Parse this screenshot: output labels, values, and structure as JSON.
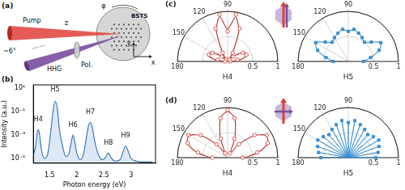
{
  "diagram": {
    "label": "(a)",
    "pump": "Pump",
    "hhg": "HHG",
    "polarizer": "Pol.",
    "sample": "BSTS",
    "angle": "~6°",
    "axes": [
      "x",
      "y",
      "z"
    ],
    "azimuth": "φ"
  },
  "chart_data": [
    {
      "type": "line",
      "panel": "(b)",
      "x_label": "Photon energy (eV)",
      "y_label": "Intensity (a.u.)",
      "x": [
        1.2,
        1.24,
        1.27,
        1.29,
        1.31,
        1.34,
        1.4,
        1.46,
        1.52,
        1.56,
        1.6,
        1.64,
        1.68,
        1.74,
        1.8,
        1.86,
        1.9,
        1.93,
        1.96,
        2.0,
        2.06,
        2.12,
        2.18,
        2.22,
        2.25,
        2.28,
        2.33,
        2.4,
        2.48,
        2.54,
        2.58,
        2.62,
        2.7,
        2.8,
        2.86,
        2.9,
        2.94,
        3.0,
        3.1,
        3.2,
        3.3,
        3.4
      ],
      "values": [
        2e-05,
        0.0001,
        0.0015,
        0.003,
        0.0015,
        0.0001,
        1e-05,
        2e-05,
        0.002,
        0.1,
        0.8,
        0.2,
        0.003,
        0.0001,
        1.5e-05,
        3e-05,
        0.0003,
        0.001,
        0.0003,
        3e-05,
        8e-06,
        2e-05,
        0.0008,
        0.008,
        0.012,
        0.006,
        0.0003,
        2e-05,
        8e-06,
        1.5e-05,
        3e-05,
        1.5e-05,
        6e-06,
        8e-06,
        5e-05,
        0.00012,
        5e-05,
        1e-05,
        6e-06,
        5e-06,
        5e-06,
        5e-06
      ],
      "color": "#2f6fb5",
      "log": "y",
      "grid": false,
      "xlim": [
        1.2,
        3.45
      ],
      "xticks": [
        1.5,
        2,
        2.5,
        3
      ],
      "ylim": [
        4e-06,
        20
      ],
      "yticks": [
        {
          "value": 1e-05,
          "label": "10⁻⁵"
        },
        {
          "value": 0.001,
          "label": "10⁻³"
        },
        {
          "value": 0.1,
          "label": "10⁻¹"
        },
        {
          "value": 10,
          "label": "10¹"
        }
      ],
      "annotations": [
        {
          "text": "H4",
          "x": 1.29,
          "y": 0.012
        },
        {
          "text": "H5",
          "x": 1.6,
          "y": 4
        },
        {
          "text": "H6",
          "x": 1.93,
          "y": 0.004
        },
        {
          "text": "H7",
          "x": 2.25,
          "y": 0.05
        },
        {
          "text": "H8",
          "x": 2.58,
          "y": 0.00012
        },
        {
          "text": "H9",
          "x": 2.9,
          "y": 0.0005
        }
      ]
    },
    {
      "type": "polar",
      "panel": "(c)",
      "title": "H4",
      "theta": [
        0,
        10,
        20,
        30,
        40,
        50,
        60,
        70,
        80,
        90,
        100,
        110,
        120,
        130,
        140,
        150,
        160,
        170,
        180
      ],
      "rlim": [
        0,
        1
      ],
      "rticks": [
        0.5,
        1
      ],
      "thetaticks": [
        90,
        120,
        150,
        180
      ],
      "series": [
        {
          "color": "#d9534f",
          "marker": "circle",
          "line_style": "none",
          "values": [
            0.05,
            0.2,
            0.4,
            0.35,
            0.15,
            0.05,
            0.2,
            0.7,
            0.95,
            0.6,
            0.95,
            0.7,
            0.2,
            0.05,
            0.15,
            0.35,
            0.4,
            0.2,
            0.05
          ]
        },
        {
          "color": "#b0302a",
          "marker": "none",
          "line_style": "solid",
          "values": [
            0.1,
            0.3,
            0.42,
            0.35,
            0.18,
            0.05,
            0.2,
            0.65,
            0.9,
            0.65,
            0.9,
            0.65,
            0.2,
            0.05,
            0.18,
            0.35,
            0.42,
            0.3,
            0.1
          ]
        }
      ]
    },
    {
      "type": "polar",
      "title": "H5",
      "theta": [
        0,
        10,
        20,
        30,
        40,
        50,
        60,
        70,
        80,
        90,
        100,
        110,
        120,
        130,
        140,
        150,
        160,
        170,
        180
      ],
      "rlim": [
        0,
        1
      ],
      "rticks": [
        0.5,
        1
      ],
      "thetaticks": [
        90,
        120,
        150,
        180
      ],
      "series": [
        {
          "color": "#3b8fd1",
          "marker": "square",
          "line_style": "solid",
          "values": [
            0.3,
            0.45,
            0.65,
            0.75,
            0.6,
            0.5,
            0.55,
            0.6,
            0.65,
            0.6,
            0.65,
            0.6,
            0.55,
            0.5,
            0.6,
            0.75,
            0.65,
            0.45,
            0.3
          ]
        }
      ]
    },
    {
      "type": "polar",
      "panel": "(d)",
      "title": "H4",
      "theta": [
        0,
        10,
        20,
        30,
        40,
        50,
        60,
        70,
        80,
        90,
        100,
        110,
        120,
        130,
        140,
        150,
        160,
        170,
        180
      ],
      "rlim": [
        0,
        1
      ],
      "rticks": [
        0.5,
        1
      ],
      "thetaticks": [
        90,
        120,
        150,
        180
      ],
      "series": [
        {
          "color": "#d9534f",
          "marker": "circle",
          "line_style": "none",
          "values": [
            0.3,
            0.6,
            0.85,
            0.9,
            0.7,
            0.35,
            0.1,
            0.4,
            0.8,
            0.95,
            0.8,
            0.4,
            0.1,
            0.35,
            0.7,
            0.9,
            0.85,
            0.6,
            0.3
          ]
        },
        {
          "color": "#b0302a",
          "marker": "none",
          "line_style": "solid",
          "values": [
            0.35,
            0.62,
            0.85,
            0.88,
            0.68,
            0.35,
            0.12,
            0.42,
            0.8,
            0.92,
            0.8,
            0.42,
            0.12,
            0.35,
            0.68,
            0.88,
            0.85,
            0.62,
            0.35
          ]
        }
      ]
    },
    {
      "type": "polar",
      "title": "H5",
      "theta": [
        0,
        10,
        20,
        30,
        40,
        50,
        60,
        70,
        80,
        90,
        100,
        110,
        120,
        130,
        140,
        150,
        160,
        170,
        180
      ],
      "rlim": [
        0,
        1
      ],
      "rticks": [
        0.5,
        1
      ],
      "thetaticks": [
        90,
        120,
        150,
        180
      ],
      "series": [
        {
          "color": "#3b8fd1",
          "marker": "square",
          "line_style": "radial",
          "values": [
            0.55,
            0.6,
            0.65,
            0.7,
            0.65,
            0.6,
            0.65,
            0.7,
            0.75,
            0.7,
            0.75,
            0.7,
            0.65,
            0.6,
            0.65,
            0.7,
            0.65,
            0.6,
            0.55
          ]
        }
      ]
    }
  ]
}
